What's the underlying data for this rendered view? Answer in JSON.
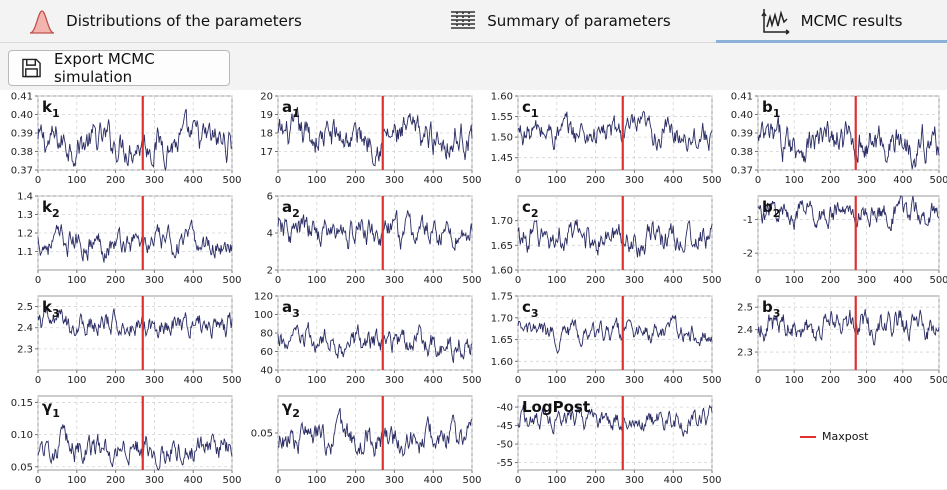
{
  "tabs": [
    {
      "label": "Distributions of the parameters",
      "icon": "bell-curve-icon"
    },
    {
      "label": "Summary of parameters",
      "icon": "table-icon"
    },
    {
      "label": "MCMC results",
      "icon": "trace-plot-icon",
      "active": true
    }
  ],
  "toolbar": {
    "export_label": "Export MCMC simulation",
    "export_icon": "floppy-disk-icon"
  },
  "legend": {
    "label": "Maxpost",
    "color": "#e0312f"
  },
  "colors": {
    "trace": "#2b2d64",
    "maxpost": "#e0312f",
    "grid": "#d4d4d4"
  },
  "x_ticks": [
    "0",
    "100",
    "200",
    "300",
    "400",
    "500"
  ],
  "chart_data": [
    {
      "type": "line",
      "param": "k",
      "sub": "1",
      "xlim": [
        0,
        500
      ],
      "ylim": [
        0.37,
        0.41
      ],
      "yticks": [
        "0.37",
        "0.38",
        "0.39",
        "0.40",
        "0.41"
      ],
      "maxpost_x": 270,
      "level": 0.385,
      "spread": 0.008
    },
    {
      "type": "line",
      "param": "a",
      "sub": "1",
      "xlim": [
        0,
        500
      ],
      "ylim": [
        16,
        20
      ],
      "yticks": [
        "17",
        "18",
        "19",
        "20"
      ],
      "maxpost_x": 270,
      "level": 17.8,
      "spread": 0.8
    },
    {
      "type": "line",
      "param": "c",
      "sub": "1",
      "xlim": [
        0,
        500
      ],
      "ylim": [
        1.42,
        1.6
      ],
      "yticks": [
        "1.45",
        "1.50",
        "1.55",
        "1.60"
      ],
      "maxpost_x": 270,
      "level": 1.51,
      "spread": 0.03
    },
    {
      "type": "line",
      "param": "b",
      "sub": "1",
      "xlim": [
        0,
        500
      ],
      "ylim": [
        0.37,
        0.41
      ],
      "yticks": [
        "0.37",
        "0.38",
        "0.39",
        "0.40",
        "0.41"
      ],
      "maxpost_x": 270,
      "level": 0.385,
      "spread": 0.008
    },
    {
      "type": "line",
      "param": "k",
      "sub": "2",
      "xlim": [
        0,
        500
      ],
      "ylim": [
        1.0,
        1.4
      ],
      "yticks": [
        "1.1",
        "1.2",
        "1.3",
        "1.4"
      ],
      "maxpost_x": 270,
      "level": 1.15,
      "spread": 0.06
    },
    {
      "type": "line",
      "param": "a",
      "sub": "2",
      "xlim": [
        0,
        500
      ],
      "ylim": [
        2,
        6
      ],
      "yticks": [
        "2",
        "4",
        "6"
      ],
      "maxpost_x": 270,
      "level": 4.0,
      "spread": 0.7
    },
    {
      "type": "line",
      "param": "c",
      "sub": "2",
      "xlim": [
        0,
        500
      ],
      "ylim": [
        1.6,
        1.75
      ],
      "yticks": [
        "1.60",
        "1.65",
        "1.70"
      ],
      "maxpost_x": 270,
      "level": 1.665,
      "spread": 0.025
    },
    {
      "type": "line",
      "param": "b",
      "sub": "2",
      "xlim": [
        0,
        500
      ],
      "ylim": [
        -2.5,
        -0.3
      ],
      "yticks": [
        "-2",
        "-1"
      ],
      "maxpost_x": 270,
      "level": -0.8,
      "spread": 0.3
    },
    {
      "type": "line",
      "param": "k",
      "sub": "3",
      "xlim": [
        0,
        500
      ],
      "ylim": [
        2.2,
        2.55
      ],
      "yticks": [
        "2.3",
        "2.4",
        "2.5"
      ],
      "maxpost_x": 270,
      "level": 2.42,
      "spread": 0.05
    },
    {
      "type": "line",
      "param": "a",
      "sub": "3",
      "xlim": [
        0,
        500
      ],
      "ylim": [
        40,
        120
      ],
      "yticks": [
        "40",
        "60",
        "80",
        "100",
        "120"
      ],
      "maxpost_x": 270,
      "level": 70,
      "spread": 12
    },
    {
      "type": "line",
      "param": "c",
      "sub": "3",
      "xlim": [
        0,
        500
      ],
      "ylim": [
        1.58,
        1.75
      ],
      "yticks": [
        "1.60",
        "1.65",
        "1.70",
        "1.75"
      ],
      "maxpost_x": 270,
      "level": 1.665,
      "spread": 0.02
    },
    {
      "type": "line",
      "param": "b",
      "sub": "3",
      "xlim": [
        0,
        500
      ],
      "ylim": [
        2.22,
        2.55
      ],
      "yticks": [
        "2.3",
        "2.4",
        "2.5"
      ],
      "maxpost_x": 270,
      "level": 2.42,
      "spread": 0.05
    },
    {
      "type": "line",
      "param": "γ",
      "sub": "1",
      "xlim": [
        0,
        500
      ],
      "ylim": [
        0.045,
        0.16
      ],
      "yticks": [
        "0.05",
        "0.10",
        "0.15"
      ],
      "maxpost_x": 270,
      "level": 0.08,
      "spread": 0.018
    },
    {
      "type": "line",
      "param": "γ",
      "sub": "2",
      "xlim": [
        0,
        500
      ],
      "ylim": [
        0.015,
        0.085
      ],
      "yticks": [
        "0.05"
      ],
      "maxpost_x": 270,
      "level": 0.045,
      "spread": 0.012
    },
    {
      "type": "line",
      "param": "LogPost",
      "sub": "",
      "xlim": [
        0,
        500
      ],
      "ylim": [
        -57,
        -37
      ],
      "yticks": [
        "-40",
        "-45",
        "-50",
        "-55"
      ],
      "maxpost_x": 270,
      "level": -43,
      "spread": 2.5
    }
  ]
}
